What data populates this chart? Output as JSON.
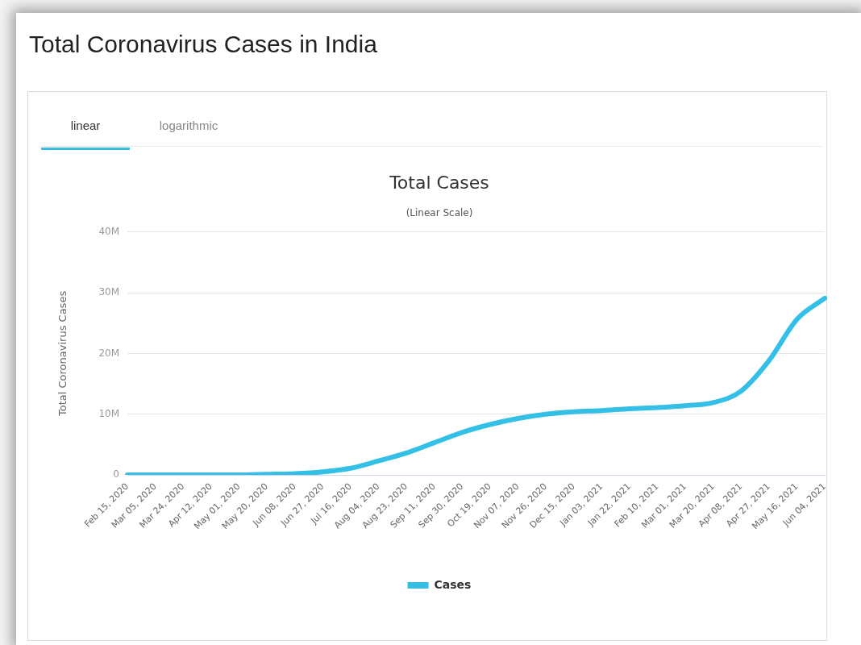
{
  "chart_data": {
    "type": "line",
    "title": "Total Cases",
    "subtitle": "(Linear Scale)",
    "ylabel": "Total Coronavirus Cases",
    "annotations": [
      "Total Coronavirus Cases in India",
      "linear",
      "logarithmic"
    ],
    "categories": [
      "Feb 15, 2020",
      "Mar 05, 2020",
      "Mar 24, 2020",
      "Apr 12, 2020",
      "May 01, 2020",
      "May 20, 2020",
      "Jun 08, 2020",
      "Jun 27, 2020",
      "Jul 16, 2020",
      "Aug 04, 2020",
      "Aug 23, 2020",
      "Sep 11, 2020",
      "Sep 30, 2020",
      "Oct 19, 2020",
      "Nov 07, 2020",
      "Nov 26, 2020",
      "Dec 15, 2020",
      "Jan 03, 2021",
      "Jan 22, 2021",
      "Feb 10, 2021",
      "Mar 01, 2021",
      "Mar 20, 2021",
      "Apr 08, 2021",
      "Apr 27, 2021",
      "May 16, 2021",
      "Jun 04, 2021"
    ],
    "series": [
      {
        "name": "Cases",
        "color": "#33bfe6",
        "values": [
          0,
          0,
          0,
          0,
          0,
          100000,
          200000,
          500000,
          1100000,
          2300000,
          3600000,
          5300000,
          7000000,
          8300000,
          9300000,
          10000000,
          10400000,
          10600000,
          10900000,
          11100000,
          11400000,
          11900000,
          13800000,
          18800000,
          25600000,
          29100000
        ]
      }
    ],
    "ylim": [
      0,
      40000000
    ],
    "yticks": [
      0,
      {
        "value": 10000000,
        "label": "10M"
      },
      {
        "value": 20000000,
        "label": "20M"
      },
      {
        "value": 30000000,
        "label": "30M"
      },
      {
        "value": 40000000,
        "label": "40M"
      }
    ],
    "grid": "y",
    "legend": "bottom",
    "line_style": "solid"
  }
}
